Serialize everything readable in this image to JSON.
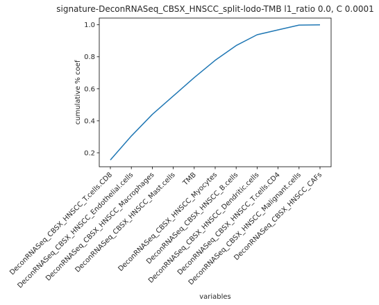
{
  "chart_data": {
    "type": "line",
    "title": "signature-DeconRNASeq_CBSX_HNSCC_split-lodo-TMB l1_ratio 0.0, C 0.0001",
    "xlabel": "variables",
    "ylabel": "cumulative % coef",
    "categories": [
      "DeconRNASeq_CBSX_HNSCC_T.cells.CD8",
      "DeconRNASeq_CBSX_HNSCC_Endothelial.cells",
      "DeconRNASeq_CBSX_HNSCC_Macrophages",
      "DeconRNASeq_CBSX_HNSCC_Mast.cells",
      "TMB",
      "DeconRNASeq_CBSX_HNSCC_Myocytes",
      "DeconRNASeq_CBSX_HNSCC_B.cells",
      "DeconRNASeq_CBSX_HNSCC_Dendritic.cells",
      "DeconRNASeq_CBSX_HNSCC_T.cells.CD4",
      "DeconRNASeq_CBSX_HNSCC_Malignant.cells",
      "DeconRNASeq_CBSX_HNSCC_CAFs"
    ],
    "series": [
      {
        "values": [
          0.155,
          0.305,
          0.44,
          0.555,
          0.67,
          0.778,
          0.87,
          0.938,
          0.968,
          0.998,
          1.0
        ],
        "color": "#1f77b4"
      }
    ],
    "yticks": [
      "0.2",
      "0.4",
      "0.6",
      "0.8",
      "1.0"
    ],
    "ylim": [
      0.113,
      1.042
    ],
    "grid": false
  }
}
